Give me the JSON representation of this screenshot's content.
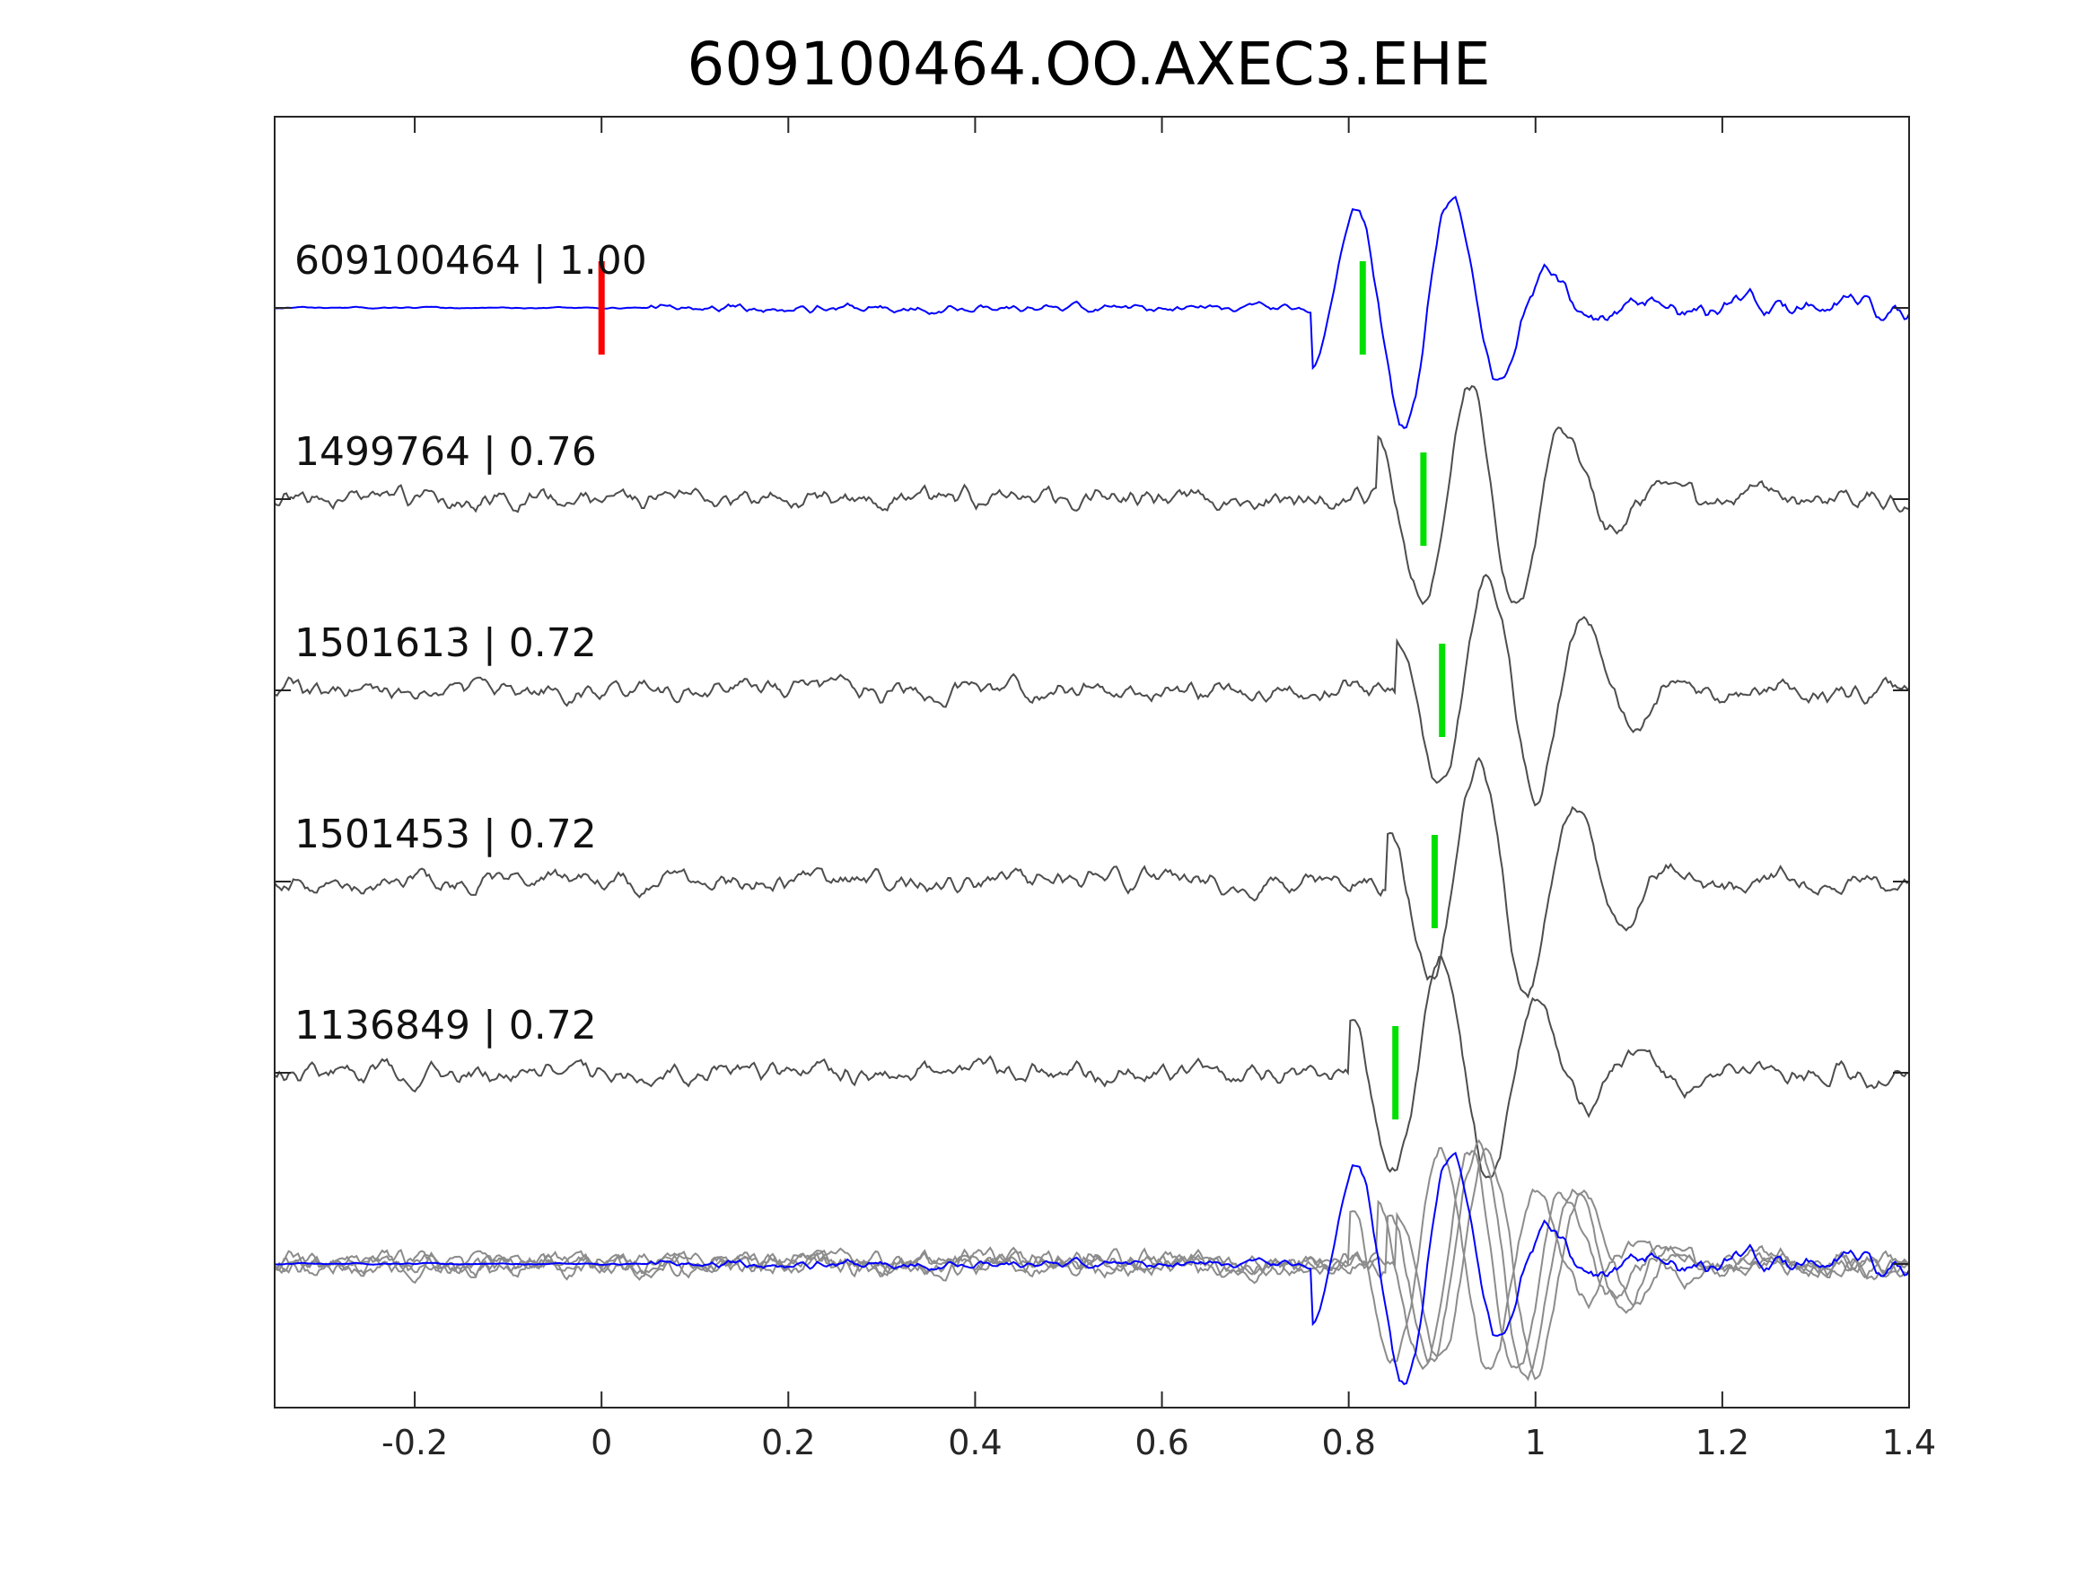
{
  "chart_data": {
    "type": "line",
    "title": "609100464.OO.AXEC3.EHE",
    "xlabel": "",
    "ylabel": "",
    "xlim": [
      -0.35,
      1.4
    ],
    "x_ticks": [
      -0.2,
      0,
      0.2,
      0.4,
      0.6,
      0.8,
      1,
      1.2,
      1.4
    ],
    "x_tick_labels": [
      "-0.2",
      "0",
      "0.2",
      "0.4",
      "0.6",
      "0.8",
      "1",
      "1.2",
      "1.4"
    ],
    "grid": false,
    "colors": {
      "template": "#0000ff",
      "match": "#4d4d4d",
      "stack": "#8c8c8c",
      "origin_pick": "#ff0000",
      "phase_pick": "#00e000"
    },
    "origin_pick": 0.0,
    "series": [
      {
        "label": "609100464 | 1.00",
        "event_id": "609100464",
        "correlation": 1.0,
        "role": "template",
        "phase_pick": 0.815,
        "seed": 11,
        "arrival": 0.8,
        "first": 1
      },
      {
        "label": "1499764 | 0.76",
        "event_id": "1499764",
        "correlation": 0.76,
        "role": "match",
        "phase_pick": 0.88,
        "seed": 23,
        "arrival": 0.87,
        "first": -1
      },
      {
        "label": "1501613 | 0.72",
        "event_id": "1501613",
        "correlation": 0.72,
        "role": "match",
        "phase_pick": 0.9,
        "seed": 37,
        "arrival": 0.89,
        "first": -1
      },
      {
        "label": "1501453 | 0.72",
        "event_id": "1501453",
        "correlation": 0.72,
        "role": "match",
        "phase_pick": 0.892,
        "seed": 41,
        "arrival": 0.88,
        "first": -1
      },
      {
        "label": "1136849 | 0.72",
        "event_id": "1136849",
        "correlation": 0.72,
        "role": "match",
        "phase_pick": 0.85,
        "seed": 53,
        "arrival": 0.84,
        "first": -1
      }
    ],
    "overlay": {
      "label": "",
      "description_hidden": true
    }
  }
}
